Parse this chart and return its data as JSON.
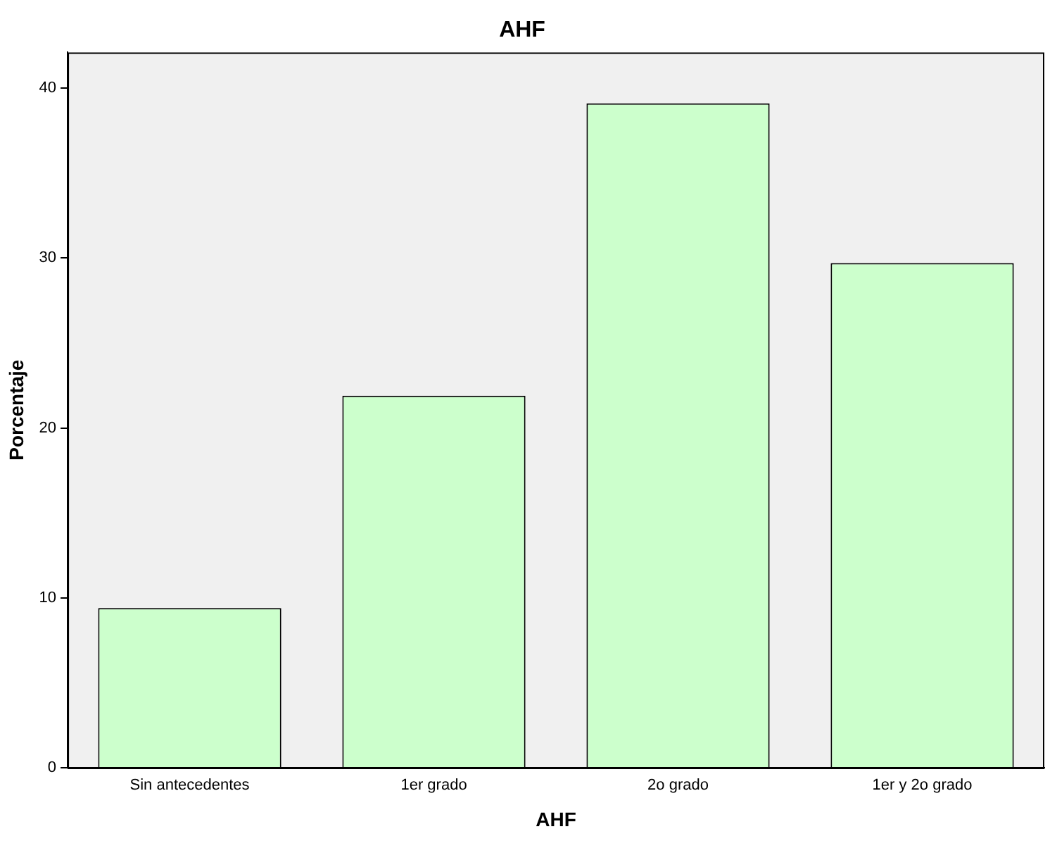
{
  "chart_data": {
    "type": "bar",
    "title": "AHF",
    "xlabel": "AHF",
    "ylabel": "Porcentaje",
    "categories": [
      "Sin antecedentes",
      "1er grado",
      "2o grado",
      "1er y 2o grado"
    ],
    "values": [
      9.4,
      21.9,
      39.1,
      29.7
    ],
    "color": "#ccffcc",
    "ylim": [
      0,
      42.1
    ],
    "yticks": [
      0,
      10,
      20,
      30,
      40
    ],
    "grid": false,
    "legend": false
  }
}
